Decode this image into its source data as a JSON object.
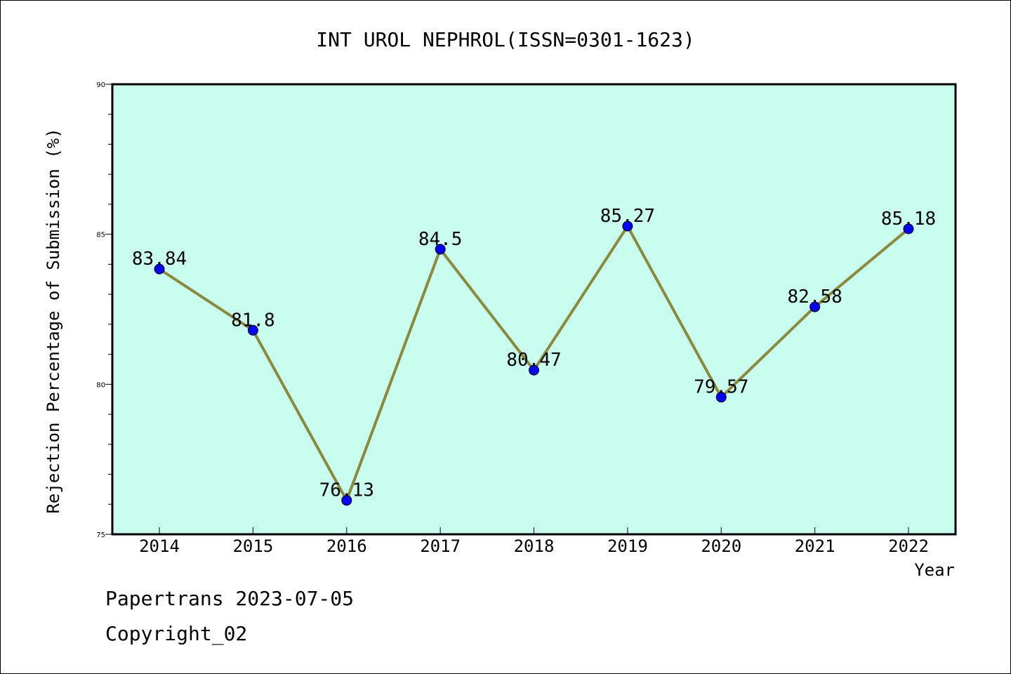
{
  "chart_data": {
    "type": "line",
    "title": "INT UROL NEPHROL(ISSN=0301-1623)",
    "xlabel": "Year",
    "ylabel": "Rejection Percentage of Submission (%)",
    "categories": [
      "2014",
      "2015",
      "2016",
      "2017",
      "2018",
      "2019",
      "2020",
      "2021",
      "2022"
    ],
    "series": [
      {
        "values": [
          83.84,
          81.8,
          76.13,
          84.5,
          80.47,
          85.27,
          79.57,
          82.58,
          85.18
        ],
        "data_labels": [
          "83.84",
          "81.8",
          "76.13",
          "84.5",
          "80.47",
          "85.27",
          "79.57",
          "82.58",
          "85.18"
        ]
      }
    ],
    "ylim": [
      75,
      90
    ],
    "yticks": [
      "75",
      "80",
      "85",
      "90"
    ],
    "grid": false,
    "colors": {
      "plot_background": "#c8fcee",
      "line": "#8b8a3a",
      "marker": "#0000ff"
    }
  },
  "footer": {
    "source": "Papertrans 2023-07-05",
    "copyright": "Copyright_02"
  }
}
